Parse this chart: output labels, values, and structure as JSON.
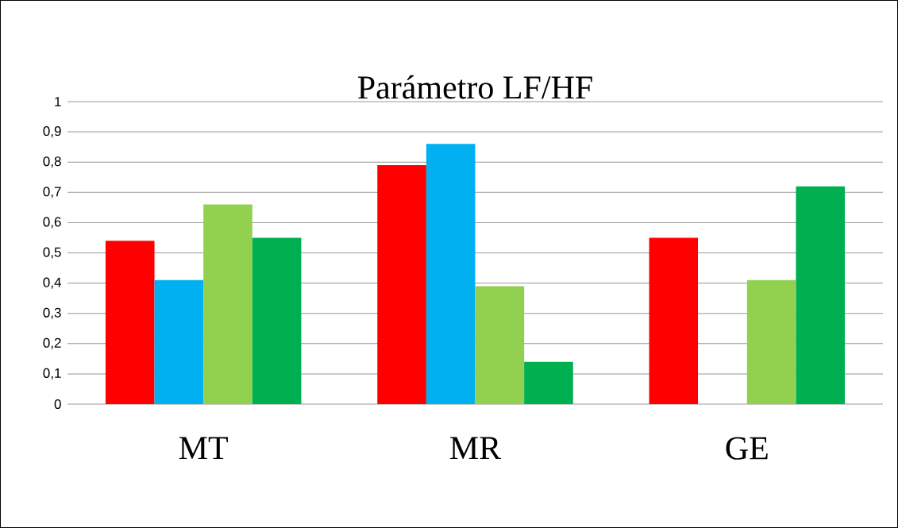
{
  "chart_data": {
    "type": "bar",
    "title": "Parámetro LF/HF",
    "categories": [
      "MT",
      "MR",
      "GE"
    ],
    "series": [
      {
        "color": "#ff0000",
        "values": [
          0.54,
          0.79,
          0.55
        ]
      },
      {
        "color": "#00b0f0",
        "values": [
          0.41,
          0.86,
          null
        ]
      },
      {
        "color": "#92d050",
        "values": [
          0.66,
          0.39,
          0.41
        ]
      },
      {
        "color": "#00b050",
        "values": [
          0.55,
          0.14,
          0.72
        ]
      }
    ],
    "ylim": [
      0,
      1
    ],
    "yticks": [
      {
        "value": 0,
        "label": "0"
      },
      {
        "value": 0.1,
        "label": "0,1"
      },
      {
        "value": 0.2,
        "label": "0,2"
      },
      {
        "value": 0.3,
        "label": "0,3"
      },
      {
        "value": 0.4,
        "label": "0,4"
      },
      {
        "value": 0.5,
        "label": "0,5"
      },
      {
        "value": 0.6,
        "label": "0,6"
      },
      {
        "value": 0.7,
        "label": "0,7"
      },
      {
        "value": 0.8,
        "label": "0,8"
      },
      {
        "value": 0.9,
        "label": "0,9"
      },
      {
        "value": 1,
        "label": "1"
      }
    ],
    "grid": "y"
  }
}
